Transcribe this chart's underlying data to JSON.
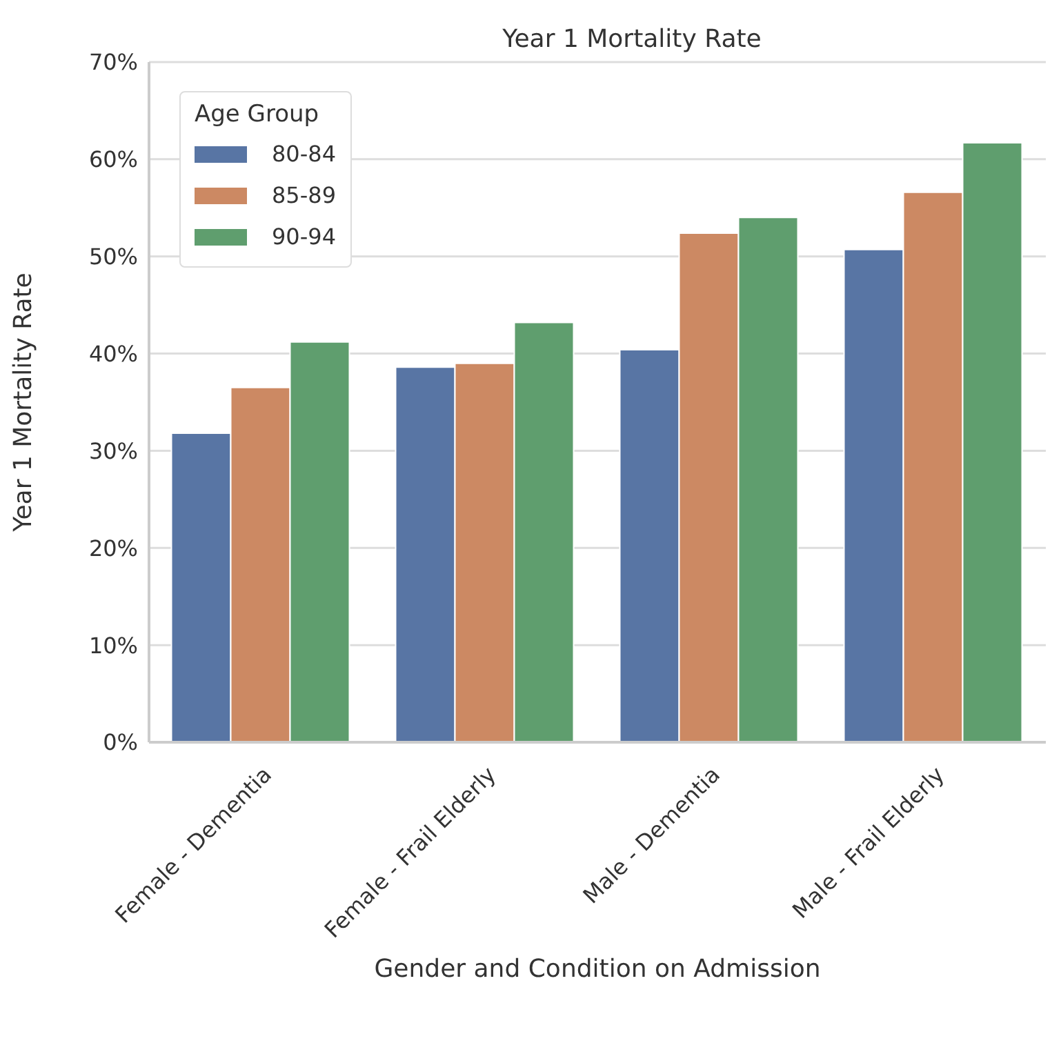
{
  "chart_data": {
    "type": "bar",
    "title": "Year 1 Mortality Rate",
    "xlabel": "Gender and Condition on Admission",
    "ylabel": "Year 1 Mortality Rate",
    "legend_title": "Age Group",
    "legend": "top left",
    "grid": "y",
    "categories": [
      "Female - Dementia",
      "Female - Frail Elderly",
      "Male - Dementia",
      "Male - Frail Elderly"
    ],
    "series": [
      {
        "name": "80-84",
        "color": "#5875a4",
        "values": [
          31.8,
          38.6,
          40.4,
          50.7
        ]
      },
      {
        "name": "85-89",
        "color": "#cc8963",
        "values": [
          36.5,
          39.0,
          52.4,
          56.6
        ]
      },
      {
        "name": "90-94",
        "color": "#5f9e6e",
        "values": [
          41.2,
          43.2,
          54.0,
          61.7
        ]
      }
    ],
    "ylim": [
      0,
      70
    ],
    "yticks": [
      {
        "value": 0,
        "label": "0%"
      },
      {
        "value": 10,
        "label": "10%"
      },
      {
        "value": 20,
        "label": "20%"
      },
      {
        "value": 30,
        "label": "30%"
      },
      {
        "value": 40,
        "label": "40%"
      },
      {
        "value": 50,
        "label": "50%"
      },
      {
        "value": 60,
        "label": "60%"
      },
      {
        "value": 70,
        "label": "70%"
      }
    ]
  }
}
